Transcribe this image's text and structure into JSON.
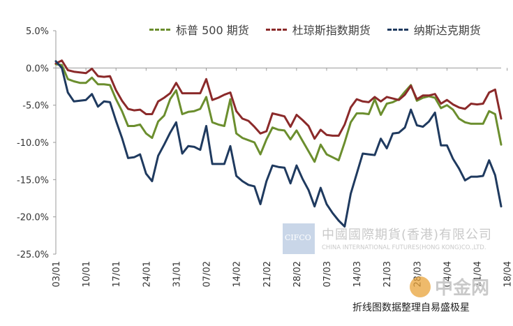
{
  "chart_data": {
    "type": "line",
    "title": "",
    "xlabel": "",
    "ylabel": "",
    "ylim": [
      -25,
      5
    ],
    "yticks": [
      5,
      0,
      -5,
      -10,
      -15,
      -20,
      -25
    ],
    "ytick_labels": [
      "5.0%",
      "0.0%",
      "-5.0%",
      "-10.0%",
      "-15.0%",
      "-20.0%",
      "-25.0%"
    ],
    "x_tick_labels": [
      "03/01",
      "10/01",
      "17/01",
      "24/01",
      "31/01",
      "07/02",
      "14/02",
      "21/02",
      "28/02",
      "07/03",
      "14/03",
      "21/03",
      "28/03",
      "04/04",
      "11/04",
      "18/04"
    ],
    "x_tick_index": [
      0,
      5,
      10,
      15,
      20,
      25,
      30,
      35,
      40,
      45,
      50,
      55,
      60,
      65,
      70,
      75
    ],
    "legend_position": "top",
    "grid": false,
    "series": [
      {
        "name": "标普 500 期货",
        "color": "#6b8e2e",
        "values": [
          0.5,
          0.4,
          -1.5,
          -1.8,
          -2.0,
          -2.0,
          -1.3,
          -2.2,
          -2.2,
          -2.3,
          -4.2,
          -5.8,
          -7.8,
          -7.8,
          -7.6,
          -8.8,
          -9.4,
          -7.2,
          -6.4,
          -4.2,
          -3.0,
          -6.2,
          -5.9,
          -5.8,
          -5.5,
          -3.9,
          -7.3,
          -7.6,
          -7.8,
          -4.2,
          -8.8,
          -9.4,
          -9.7,
          -10.0,
          -11.6,
          -9.6,
          -8.0,
          -8.3,
          -8.4,
          -9.6,
          -8.4,
          -9.8,
          -11.2,
          -12.6,
          -10.3,
          -11.6,
          -12.0,
          -12.4,
          -10.0,
          -7.3,
          -6.1,
          -6.1,
          -6.2,
          -4.2,
          -6.3,
          -4.8,
          -4.6,
          -4.2,
          -3.2,
          -2.3,
          -4.4,
          -4.0,
          -3.8,
          -4.0,
          -5.4,
          -5.0,
          -5.6,
          -6.8,
          -7.3,
          -7.5,
          -7.5,
          -7.5,
          -5.8,
          -6.2,
          -10.3
        ]
      },
      {
        "name": "杜琼斯指数期货",
        "color": "#8b2a2a",
        "values": [
          0.6,
          1.0,
          -0.3,
          -0.5,
          -0.6,
          -0.7,
          -0.1,
          -1.1,
          -1.2,
          -1.1,
          -3.0,
          -4.4,
          -5.5,
          -5.7,
          -5.6,
          -6.2,
          -6.2,
          -4.5,
          -4.0,
          -3.4,
          -2.0,
          -3.4,
          -3.4,
          -3.4,
          -3.4,
          -1.5,
          -4.3,
          -4.0,
          -3.6,
          -3.3,
          -5.8,
          -6.8,
          -7.1,
          -7.9,
          -8.8,
          -8.5,
          -6.1,
          -6.3,
          -6.5,
          -7.9,
          -6.3,
          -7.0,
          -7.8,
          -9.5,
          -8.3,
          -9.0,
          -9.1,
          -9.1,
          -7.6,
          -5.3,
          -4.2,
          -4.5,
          -4.6,
          -3.9,
          -4.5,
          -3.9,
          -4.1,
          -4.3,
          -3.6,
          -2.4,
          -4.2,
          -3.7,
          -3.7,
          -3.5,
          -4.8,
          -4.3,
          -4.9,
          -5.3,
          -5.5,
          -4.8,
          -4.9,
          -4.8,
          -3.3,
          -2.9,
          -6.8
        ]
      },
      {
        "name": "纳斯达克期货",
        "color": "#1f3a5f",
        "values": [
          0.9,
          0.0,
          -3.3,
          -4.5,
          -4.4,
          -4.3,
          -3.5,
          -5.2,
          -4.5,
          -4.6,
          -7.1,
          -9.4,
          -12.1,
          -12.0,
          -11.6,
          -14.2,
          -15.2,
          -11.8,
          -10.3,
          -8.7,
          -7.3,
          -11.5,
          -10.5,
          -10.6,
          -11.0,
          -7.8,
          -12.9,
          -12.9,
          -12.9,
          -10.5,
          -14.5,
          -15.2,
          -15.7,
          -15.9,
          -18.3,
          -15.2,
          -13.1,
          -13.3,
          -13.4,
          -15.5,
          -13.1,
          -14.9,
          -16.4,
          -18.6,
          -16.1,
          -18.3,
          -19.5,
          -20.5,
          -21.3,
          -16.9,
          -14.2,
          -11.5,
          -11.6,
          -11.7,
          -9.5,
          -10.8,
          -8.8,
          -8.7,
          -8.0,
          -5.6,
          -7.7,
          -7.9,
          -7.2,
          -6.0,
          -10.4,
          -10.4,
          -12.2,
          -13.5,
          -15.1,
          -14.6,
          -14.6,
          -14.5,
          -12.4,
          -14.4,
          -18.6
        ]
      }
    ]
  },
  "watermark": {
    "logo_text": "CIFCO",
    "company_cn": "中國國際期貨(香港)有限公司",
    "company_en": "CHINA INTERNATIONAL FUTURES(HONG KONG)CO.,LTD.",
    "site_name": "中金网"
  },
  "footer_note": "折线图数据整理自易盛极星"
}
